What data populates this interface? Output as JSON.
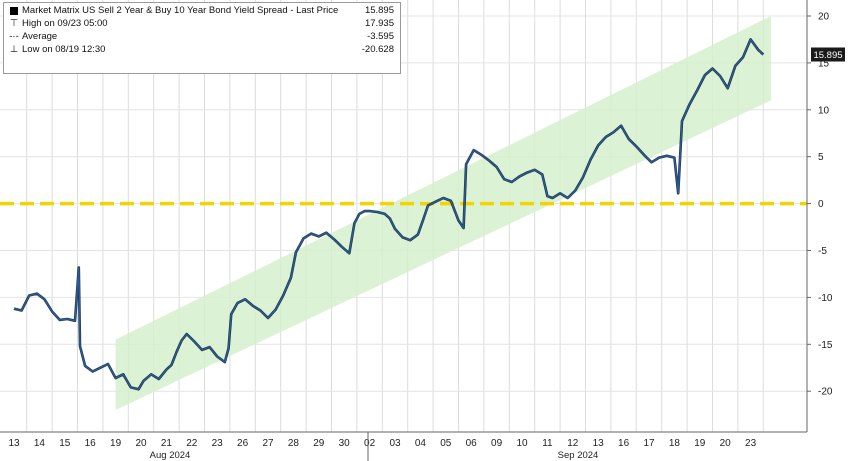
{
  "chart_data": {
    "type": "line",
    "title": "Market Matrix US Sell 2 Year & Buy 10 Year Bond Yield Spread - Last Price",
    "xlabel": "",
    "ylabel": "",
    "ylim": [
      -25,
      20
    ],
    "y_ticks": [
      20,
      15,
      10,
      5,
      0,
      -5,
      -10,
      -15,
      -20
    ],
    "x_tick_labels": [
      "13",
      "14",
      "15",
      "16",
      "19",
      "20",
      "21",
      "22",
      "23",
      "26",
      "27",
      "28",
      "29",
      "30",
      "02",
      "03",
      "04",
      "05",
      "06",
      "09",
      "10",
      "11",
      "12",
      "13",
      "16",
      "17",
      "18",
      "19",
      "20",
      "23"
    ],
    "month_labels": [
      "Aug 2024",
      "Sep 2024"
    ],
    "last_price": "15.895",
    "legend": {
      "last_value": "15.895",
      "high_label": "High on 09/23 05:00",
      "high_value": "17.935",
      "average_label": "Average",
      "average_value": "-3.595",
      "low_label": "Low on 08/19 12:30",
      "low_value": "-20.628"
    },
    "zero_line": {
      "value": 0,
      "color": "#f2d500"
    },
    "trend_channel": {
      "color": "#d6f0cc",
      "start": {
        "x": 4,
        "low": -22,
        "high": -14.5
      },
      "end": {
        "x": 29.8,
        "low": 11,
        "high": 20
      }
    },
    "series": [
      {
        "color": "#1f5fa8",
        "points": [
          [
            0,
            -11.2
          ],
          [
            0.3,
            -11.4
          ],
          [
            0.6,
            -9.8
          ],
          [
            0.9,
            -9.6
          ],
          [
            1.2,
            -10.2
          ],
          [
            1.5,
            -11.5
          ],
          [
            1.8,
            -12.4
          ],
          [
            2.1,
            -12.3
          ],
          [
            2.4,
            -12.5
          ],
          [
            2.55,
            -6.8
          ],
          [
            2.6,
            -15.2
          ],
          [
            2.8,
            -17.3
          ],
          [
            3.1,
            -17.9
          ],
          [
            3.4,
            -17.5
          ],
          [
            3.7,
            -17.1
          ],
          [
            4,
            -18.6
          ],
          [
            4.3,
            -18.2
          ],
          [
            4.6,
            -19.6
          ],
          [
            4.9,
            -19.8
          ],
          [
            5.1,
            -18.9
          ],
          [
            5.4,
            -18.2
          ],
          [
            5.7,
            -18.7
          ],
          [
            6,
            -17.7
          ],
          [
            6.2,
            -17.2
          ],
          [
            6.4,
            -15.8
          ],
          [
            6.6,
            -14.6
          ],
          [
            6.8,
            -13.9
          ],
          [
            7.1,
            -14.7
          ],
          [
            7.4,
            -15.6
          ],
          [
            7.7,
            -15.3
          ],
          [
            8,
            -16.3
          ],
          [
            8.3,
            -16.9
          ],
          [
            8.45,
            -15.4
          ],
          [
            8.55,
            -11.8
          ],
          [
            8.8,
            -10.6
          ],
          [
            9.1,
            -10.2
          ],
          [
            9.4,
            -10.9
          ],
          [
            9.7,
            -11.4
          ],
          [
            10,
            -12.2
          ],
          [
            10.3,
            -11.3
          ],
          [
            10.6,
            -9.8
          ],
          [
            10.9,
            -7.9
          ],
          [
            11.1,
            -5.2
          ],
          [
            11.4,
            -3.7
          ],
          [
            11.7,
            -3.2
          ],
          [
            12,
            -3.5
          ],
          [
            12.3,
            -3.1
          ],
          [
            12.6,
            -3.8
          ],
          [
            12.9,
            -4.6
          ],
          [
            13.2,
            -5.3
          ],
          [
            13.4,
            -2.1
          ],
          [
            13.6,
            -1.1
          ],
          [
            13.8,
            -0.8
          ],
          [
            14,
            -0.8
          ],
          [
            14.3,
            -0.9
          ],
          [
            14.6,
            -1.1
          ],
          [
            14.8,
            -1.6
          ],
          [
            15,
            -2.7
          ],
          [
            15.3,
            -3.6
          ],
          [
            15.6,
            -3.9
          ],
          [
            15.9,
            -3.3
          ],
          [
            16.1,
            -1.8
          ],
          [
            16.3,
            -0.2
          ],
          [
            16.6,
            0.2
          ],
          [
            16.9,
            0.6
          ],
          [
            17.2,
            0.3
          ],
          [
            17.5,
            -1.8
          ],
          [
            17.7,
            -2.6
          ],
          [
            17.8,
            4.2
          ],
          [
            18.1,
            5.7
          ],
          [
            18.4,
            5.2
          ],
          [
            18.7,
            4.6
          ],
          [
            19,
            3.9
          ],
          [
            19.3,
            2.6
          ],
          [
            19.6,
            2.3
          ],
          [
            19.9,
            2.9
          ],
          [
            20.2,
            3.3
          ],
          [
            20.5,
            3.6
          ],
          [
            20.8,
            3.1
          ],
          [
            21,
            0.8
          ],
          [
            21.2,
            0.6
          ],
          [
            21.5,
            1.1
          ],
          [
            21.8,
            0.6
          ],
          [
            22.1,
            1.4
          ],
          [
            22.4,
            2.8
          ],
          [
            22.7,
            4.7
          ],
          [
            23,
            6.2
          ],
          [
            23.3,
            7.1
          ],
          [
            23.6,
            7.6
          ],
          [
            23.9,
            8.3
          ],
          [
            24.2,
            6.9
          ],
          [
            24.5,
            6.1
          ],
          [
            24.8,
            5.2
          ],
          [
            25.1,
            4.4
          ],
          [
            25.4,
            4.9
          ],
          [
            25.7,
            5.1
          ],
          [
            26,
            4.9
          ],
          [
            26.15,
            1.1
          ],
          [
            26.3,
            8.8
          ],
          [
            26.6,
            10.6
          ],
          [
            26.9,
            12.1
          ],
          [
            27.2,
            13.7
          ],
          [
            27.5,
            14.4
          ],
          [
            27.8,
            13.6
          ],
          [
            28.1,
            12.3
          ],
          [
            28.4,
            14.7
          ],
          [
            28.7,
            15.6
          ],
          [
            29,
            17.5
          ],
          [
            29.3,
            16.4
          ],
          [
            29.5,
            15.9
          ]
        ]
      }
    ]
  }
}
